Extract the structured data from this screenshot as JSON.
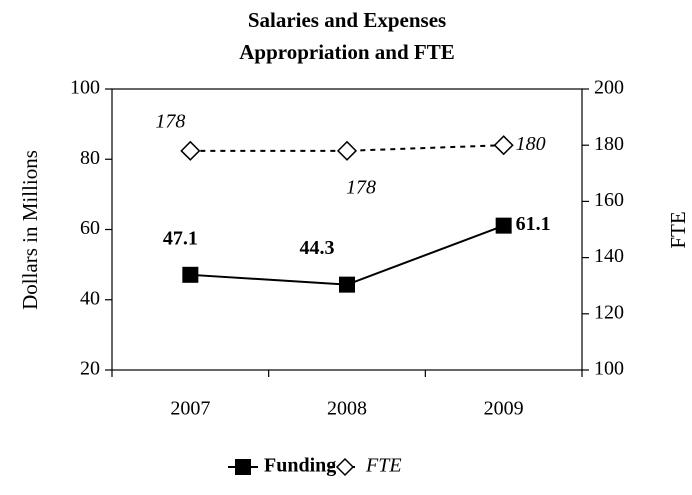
{
  "chart_data": {
    "type": "line",
    "title": [
      "Salaries and Expenses",
      "Appropriation and FTE"
    ],
    "y_label": "Dollars in Millions",
    "y2_label": "FTE",
    "categories": [
      "2007",
      "2008",
      "2009"
    ],
    "series": [
      {
        "name": "Funding",
        "color": "#000000",
        "marker": "square",
        "line": "solid",
        "values": [
          47.1,
          44.3,
          61.1
        ]
      },
      {
        "name": "FTE",
        "color": "#000000",
        "marker": "diamond",
        "line": "dotted",
        "axis": "y2",
        "values": [
          178,
          178,
          180
        ]
      }
    ],
    "ylim": [
      20,
      100
    ],
    "yticks": [
      20,
      40,
      60,
      80,
      100
    ],
    "y2lim": [
      100,
      200
    ],
    "y2ticks": [
      100,
      120,
      140,
      160,
      180,
      200
    ],
    "legend": "bottom"
  }
}
